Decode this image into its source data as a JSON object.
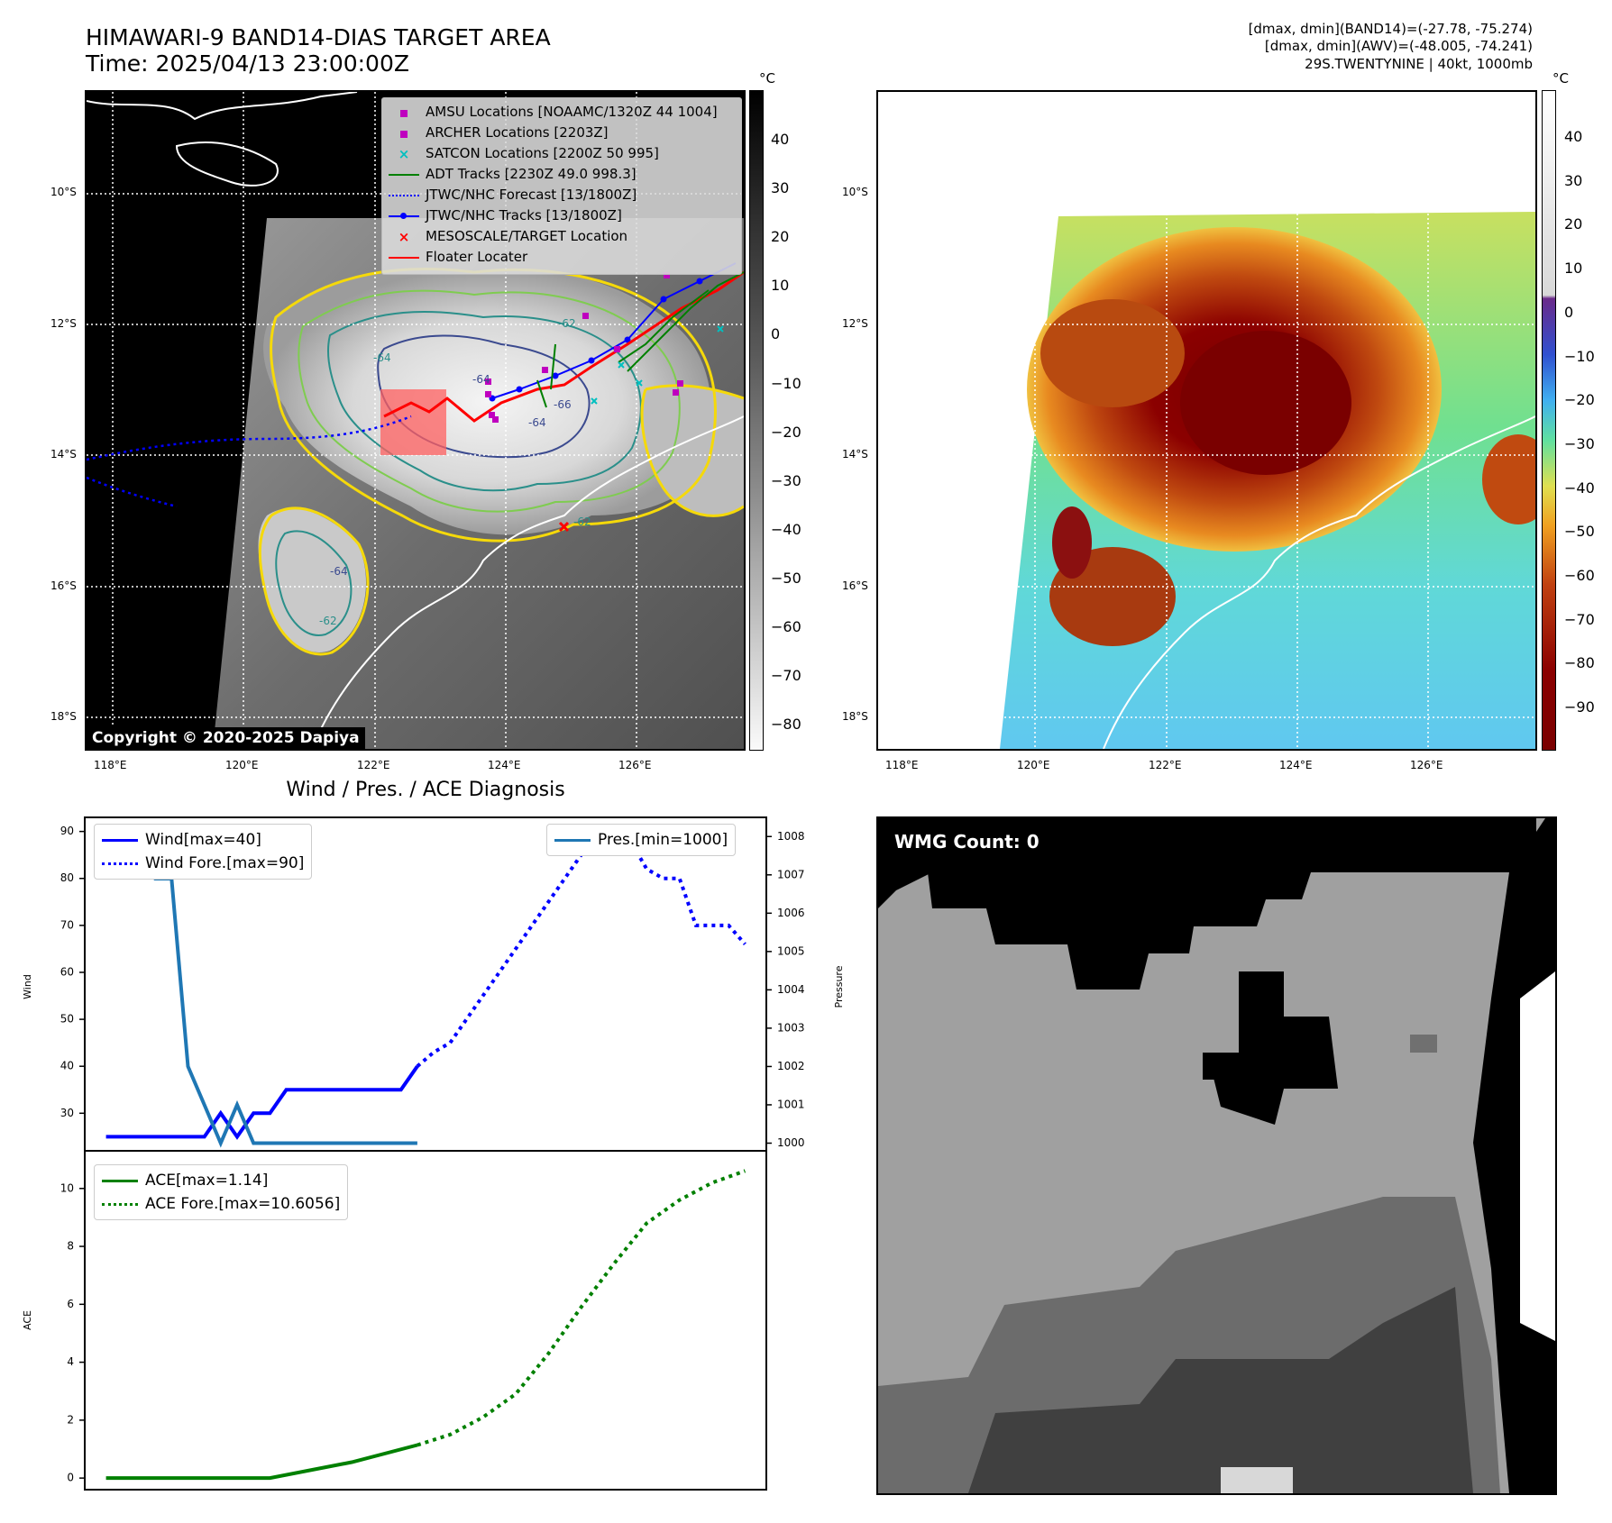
{
  "header": {
    "title_line1": "HIMAWARI-9 BAND14-DIAS TARGET AREA",
    "title_line2": "Time: 2025/04/13 23:00:00Z",
    "right_line1": "[dmax, dmin](BAND14)=(-27.78, -75.274)",
    "right_line2": "[dmax, dmin](AWV)=(-48.005, -74.241)",
    "right_line3": "29S.TWENTYNINE | 40kt, 1000mb"
  },
  "map": {
    "lat_labels": [
      "10°S",
      "12°S",
      "14°S",
      "16°S",
      "18°S"
    ],
    "lon_labels": [
      "118°E",
      "120°E",
      "122°E",
      "124°E",
      "126°E"
    ],
    "copyright": "Copyright © 2020-2025 Dapiya",
    "legend": [
      {
        "label": "AMSU Locations [NOAAMC/1320Z 44 1004]",
        "marker": "square",
        "color": "#bf00bf"
      },
      {
        "label": "ARCHER Locations [2203Z]",
        "marker": "square",
        "color": "#bf00bf"
      },
      {
        "label": "SATCON Locations [2200Z 50 995]",
        "marker": "x",
        "color": "#00bfbf"
      },
      {
        "label": "ADT Tracks [2230Z 49.0 998.3]",
        "marker": "line",
        "color": "#008000"
      },
      {
        "label": "JTWC/NHC Forecast [13/1800Z]",
        "marker": "dotted",
        "color": "#0000ff"
      },
      {
        "label": "JTWC/NHC Tracks [13/1800Z]",
        "marker": "line-dot",
        "color": "#0000ff"
      },
      {
        "label": "MESOSCALE/TARGET Location",
        "marker": "x",
        "color": "#ff0000"
      },
      {
        "label": "Floater Locater",
        "marker": "line",
        "color": "#ff0000"
      }
    ],
    "contour_labels": [
      "-64",
      "-62",
      "-62",
      "-64",
      "-64",
      "-66",
      "-64",
      "-62"
    ]
  },
  "colorbar_gray": {
    "unit": "°C",
    "ticks": [
      "40",
      "30",
      "20",
      "10",
      "0",
      "−10",
      "−20",
      "−30",
      "−40",
      "−50",
      "−60",
      "−70",
      "−80"
    ]
  },
  "colorbar_color": {
    "unit": "°C",
    "ticks": [
      "40",
      "30",
      "20",
      "10",
      "0",
      "−10",
      "−20",
      "−30",
      "−40",
      "−50",
      "−60",
      "−70",
      "−80",
      "−90"
    ]
  },
  "wmg": {
    "label": "WMG Count: 0"
  },
  "chart_data": [
    {
      "type": "line",
      "title": "Wind / Pres. / ACE Diagnosis",
      "ylabel": "Wind",
      "ylabel_right": "Pressure",
      "ylim": [
        22,
        93
      ],
      "ylim_right": [
        999.8,
        1008.5
      ],
      "y_ticks": [
        "90",
        "80",
        "70",
        "60",
        "50",
        "40",
        "30"
      ],
      "y_ticks_right": [
        "1008",
        "1007",
        "1006",
        "1005",
        "1004",
        "1003",
        "1002",
        "1001",
        "1000"
      ],
      "x": [
        0,
        1,
        2,
        3,
        4,
        5,
        6,
        7,
        8,
        9,
        10,
        11,
        12,
        13,
        14,
        15,
        16,
        17,
        18,
        19
      ],
      "series": [
        {
          "name": "Wind[max=40]",
          "axis": "left",
          "style": "solid",
          "color": "#0000ff",
          "x": [
            0,
            1,
            2,
            3,
            4,
            5,
            6,
            7,
            8,
            9,
            10,
            11,
            12,
            13,
            14,
            15,
            16,
            17,
            18,
            19
          ],
          "values": [
            25,
            25,
            25,
            25,
            25,
            25,
            25,
            30,
            25,
            30,
            30,
            35,
            35,
            35,
            35,
            35,
            35,
            35,
            35,
            40
          ]
        },
        {
          "name": "Wind Fore.[max=90]",
          "axis": "left",
          "style": "dotted",
          "color": "#0000ff",
          "x": [
            19,
            20,
            21,
            22,
            23,
            24,
            25,
            26,
            27,
            28,
            29,
            30,
            31,
            32,
            33,
            34,
            35,
            36,
            37,
            38,
            39
          ],
          "values": [
            40,
            43,
            45,
            50,
            55,
            60,
            65,
            70,
            75,
            80,
            85,
            88,
            90,
            88,
            82,
            80,
            80,
            70,
            70,
            70,
            66
          ]
        },
        {
          "name": "Pres.[min=1000]",
          "axis": "right",
          "style": "solid",
          "color": "#1f77b4",
          "x": [
            0,
            1,
            2,
            3,
            4,
            5,
            6,
            7,
            8,
            9,
            10,
            11,
            12,
            13,
            14,
            15,
            16,
            17,
            18,
            19
          ],
          "values": [
            1008,
            1007.3,
            1007.3,
            1006.9,
            1006.9,
            1002,
            1001,
            1000,
            1001,
            1000,
            1000,
            1000,
            1000,
            1000,
            1000,
            1000,
            1000,
            1000,
            1000,
            1000
          ]
        }
      ]
    },
    {
      "type": "line",
      "ylabel": "ACE",
      "ylim": [
        -0.4,
        11.3
      ],
      "y_ticks": [
        "10",
        "8",
        "6",
        "4",
        "2",
        "0"
      ],
      "series": [
        {
          "name": "ACE[max=1.14]",
          "style": "solid",
          "color": "#008000",
          "x": [
            0,
            5,
            10,
            15,
            19
          ],
          "values": [
            0,
            0,
            0,
            0.55,
            1.14
          ]
        },
        {
          "name": "ACE Fore.[max=10.6056]",
          "style": "dotted",
          "color": "#008000",
          "x": [
            19,
            21,
            23,
            25,
            27,
            29,
            31,
            33,
            35,
            37,
            39
          ],
          "values": [
            1.14,
            1.5,
            2.1,
            2.9,
            4.3,
            5.9,
            7.4,
            8.8,
            9.6,
            10.2,
            10.6056
          ]
        }
      ]
    }
  ]
}
